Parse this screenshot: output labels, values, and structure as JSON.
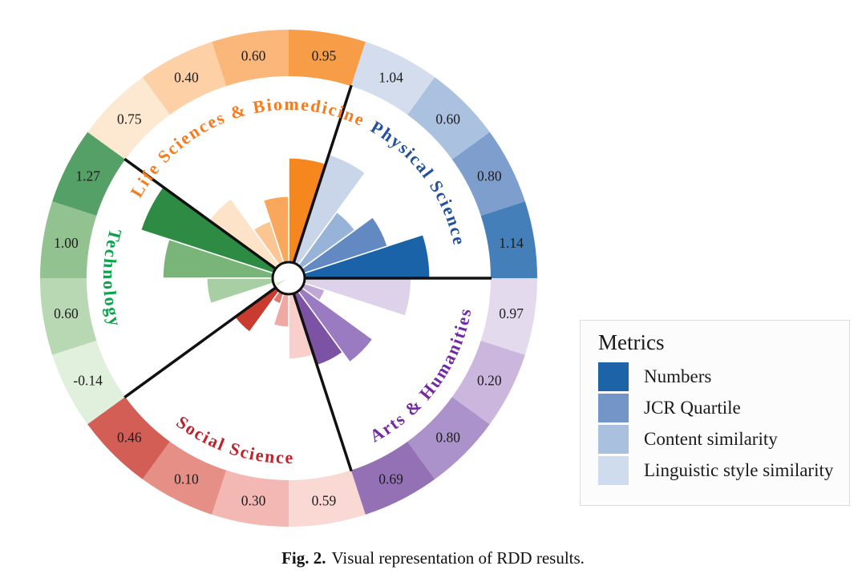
{
  "figure": {
    "caption_label": "Fig. 2.",
    "caption_text": "Visual representation of RDD results."
  },
  "legend": {
    "title": "Metrics",
    "items": [
      {
        "label": "Numbers",
        "color": "#1d63a8"
      },
      {
        "label": "JCR Quartile",
        "color": "#7495c7"
      },
      {
        "label": "Content similarity",
        "color": "#a9c1de"
      },
      {
        "label": "Linguistic style similarity",
        "color": "#cedcee"
      }
    ]
  },
  "chart_data": {
    "type": "polar-rose",
    "metrics": [
      "Numbers",
      "JCR Quartile",
      "Content similarity",
      "Linguistic style similarity"
    ],
    "slice_angle_deg": 18,
    "sector_angle_deg": 72,
    "sectors": [
      {
        "name": "Physical Science",
        "label_color": "#24509e",
        "start_angle_deg": 0,
        "colors": [
          "#1b63a9",
          "#6289c2",
          "#97b3d8",
          "#c9d6ea"
        ],
        "values": [
          1.14,
          0.8,
          0.6,
          1.04
        ],
        "value_labels": [
          "1.14",
          "0.80",
          "0.60",
          "1.04"
        ]
      },
      {
        "name": "Life Sciences & Biomedicine",
        "label_color": "#f57c21",
        "start_angle_deg": 72,
        "colors": [
          "#f6871f",
          "#f9a75c",
          "#fcc693",
          "#fde3c8"
        ],
        "values": [
          0.95,
          0.6,
          0.4,
          0.75
        ],
        "value_labels": [
          "0.95",
          "0.60",
          "0.40",
          "0.75"
        ]
      },
      {
        "name": "Technology",
        "label_color": "#0da24d",
        "start_angle_deg": 144,
        "colors": [
          "#2e8b44",
          "#79b578",
          "#a8cfa4",
          "#daecd6"
        ],
        "values": [
          1.27,
          1.0,
          0.6,
          -0.14
        ],
        "value_labels": [
          "1.27",
          "1.00",
          "0.60",
          "-0.14"
        ]
      },
      {
        "name": "Social Science",
        "label_color": "#c0232c",
        "start_angle_deg": 216,
        "colors": [
          "#c93b2f",
          "#e0766c",
          "#f0a8a2",
          "#f9cfcb"
        ],
        "values": [
          0.46,
          0.1,
          0.3,
          0.59
        ],
        "value_labels": [
          "0.46",
          "0.10",
          "0.30",
          "0.59"
        ]
      },
      {
        "name": "Arts & Humanities",
        "label_color": "#7229a3",
        "start_angle_deg": 288,
        "colors": [
          "#7c52a5",
          "#9a7ac0",
          "#bfa7d6",
          "#ded2ea"
        ],
        "values": [
          0.69,
          0.8,
          0.2,
          0.97
        ],
        "value_labels": [
          "0.69",
          "0.80",
          "0.20",
          "0.97"
        ]
      }
    ]
  }
}
